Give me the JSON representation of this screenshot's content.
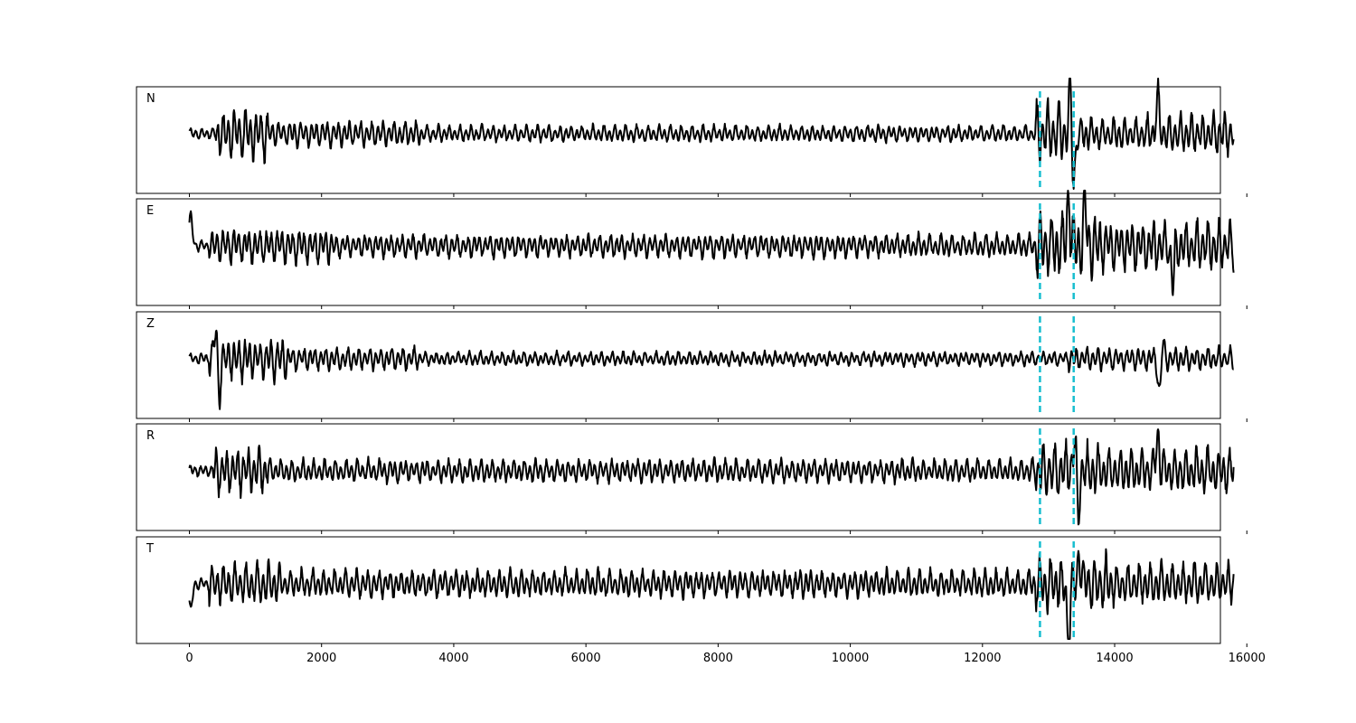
{
  "chart_data": {
    "type": "line",
    "xlim": [
      -800,
      15600
    ],
    "x_ticks": [
      0,
      2000,
      4000,
      6000,
      8000,
      10000,
      12000,
      14000,
      16000
    ],
    "x_tick_labels": [
      "0",
      "2000",
      "4000",
      "6000",
      "8000",
      "10000",
      "12000",
      "14000",
      "16000"
    ],
    "shared_x": true,
    "y_axis_visible": false,
    "grid": false,
    "xlabel": "",
    "ylabel": "",
    "title": "",
    "trace_x_range": [
      0,
      15800
    ],
    "trace_color": "#000000",
    "marker_color": "#17becf",
    "markers_x": [
      12870,
      13380
    ],
    "panels": [
      {
        "label": "N",
        "bursts": [
          {
            "x0": 400,
            "x1": 1200,
            "amp": 0.55
          },
          {
            "x0": 1200,
            "x1": 3500,
            "amp": 0.28
          },
          {
            "x0": 3500,
            "x1": 12800,
            "amp": 0.18
          },
          {
            "x0": 12800,
            "x1": 13400,
            "amp": 0.65
          },
          {
            "x0": 13400,
            "x1": 14500,
            "amp": 0.35
          },
          {
            "x0": 14500,
            "x1": 15800,
            "amp": 0.45
          }
        ],
        "spikes": [
          {
            "x": 13330,
            "value": 0.85
          },
          {
            "x": 13380,
            "value": -0.95
          },
          {
            "x": 14650,
            "value": 0.7
          }
        ]
      },
      {
        "label": "E",
        "bursts": [
          {
            "x0": 300,
            "x1": 2200,
            "amp": 0.38
          },
          {
            "x0": 2200,
            "x1": 12800,
            "amp": 0.25
          },
          {
            "x0": 12800,
            "x1": 13800,
            "amp": 0.75
          },
          {
            "x0": 13800,
            "x1": 15800,
            "amp": 0.55
          }
        ],
        "spikes": [
          {
            "x": 20,
            "value": 0.6
          },
          {
            "x": 13300,
            "value": 0.95
          },
          {
            "x": 13550,
            "value": 0.8
          },
          {
            "x": 14880,
            "value": -0.75
          }
        ]
      },
      {
        "label": "Z",
        "bursts": [
          {
            "x0": 300,
            "x1": 1500,
            "amp": 0.45
          },
          {
            "x0": 1500,
            "x1": 3500,
            "amp": 0.25
          },
          {
            "x0": 3500,
            "x1": 13300,
            "amp": 0.15
          },
          {
            "x0": 13300,
            "x1": 15800,
            "amp": 0.25
          }
        ],
        "spikes": [
          {
            "x": 410,
            "value": 0.95
          },
          {
            "x": 440,
            "value": -0.95
          },
          {
            "x": 14680,
            "value": -0.75
          },
          {
            "x": 14720,
            "value": 0.4
          }
        ]
      },
      {
        "label": "R",
        "bursts": [
          {
            "x0": 350,
            "x1": 1200,
            "amp": 0.5
          },
          {
            "x0": 1200,
            "x1": 12800,
            "amp": 0.25
          },
          {
            "x0": 12800,
            "x1": 13800,
            "amp": 0.6
          },
          {
            "x0": 13800,
            "x1": 15800,
            "amp": 0.5
          }
        ],
        "spikes": [
          {
            "x": 13400,
            "value": 0.8
          },
          {
            "x": 13440,
            "value": -0.95
          },
          {
            "x": 14650,
            "value": 0.75
          }
        ]
      },
      {
        "label": "T",
        "bursts": [
          {
            "x0": 300,
            "x1": 1400,
            "amp": 0.45
          },
          {
            "x0": 1400,
            "x1": 12800,
            "amp": 0.3
          },
          {
            "x0": 12800,
            "x1": 14000,
            "amp": 0.6
          },
          {
            "x0": 14000,
            "x1": 15800,
            "amp": 0.45
          }
        ],
        "spikes": [
          {
            "x": 20,
            "value": -0.55
          },
          {
            "x": 13300,
            "value": -1.1
          },
          {
            "x": 13470,
            "value": 0.6
          }
        ]
      }
    ]
  }
}
